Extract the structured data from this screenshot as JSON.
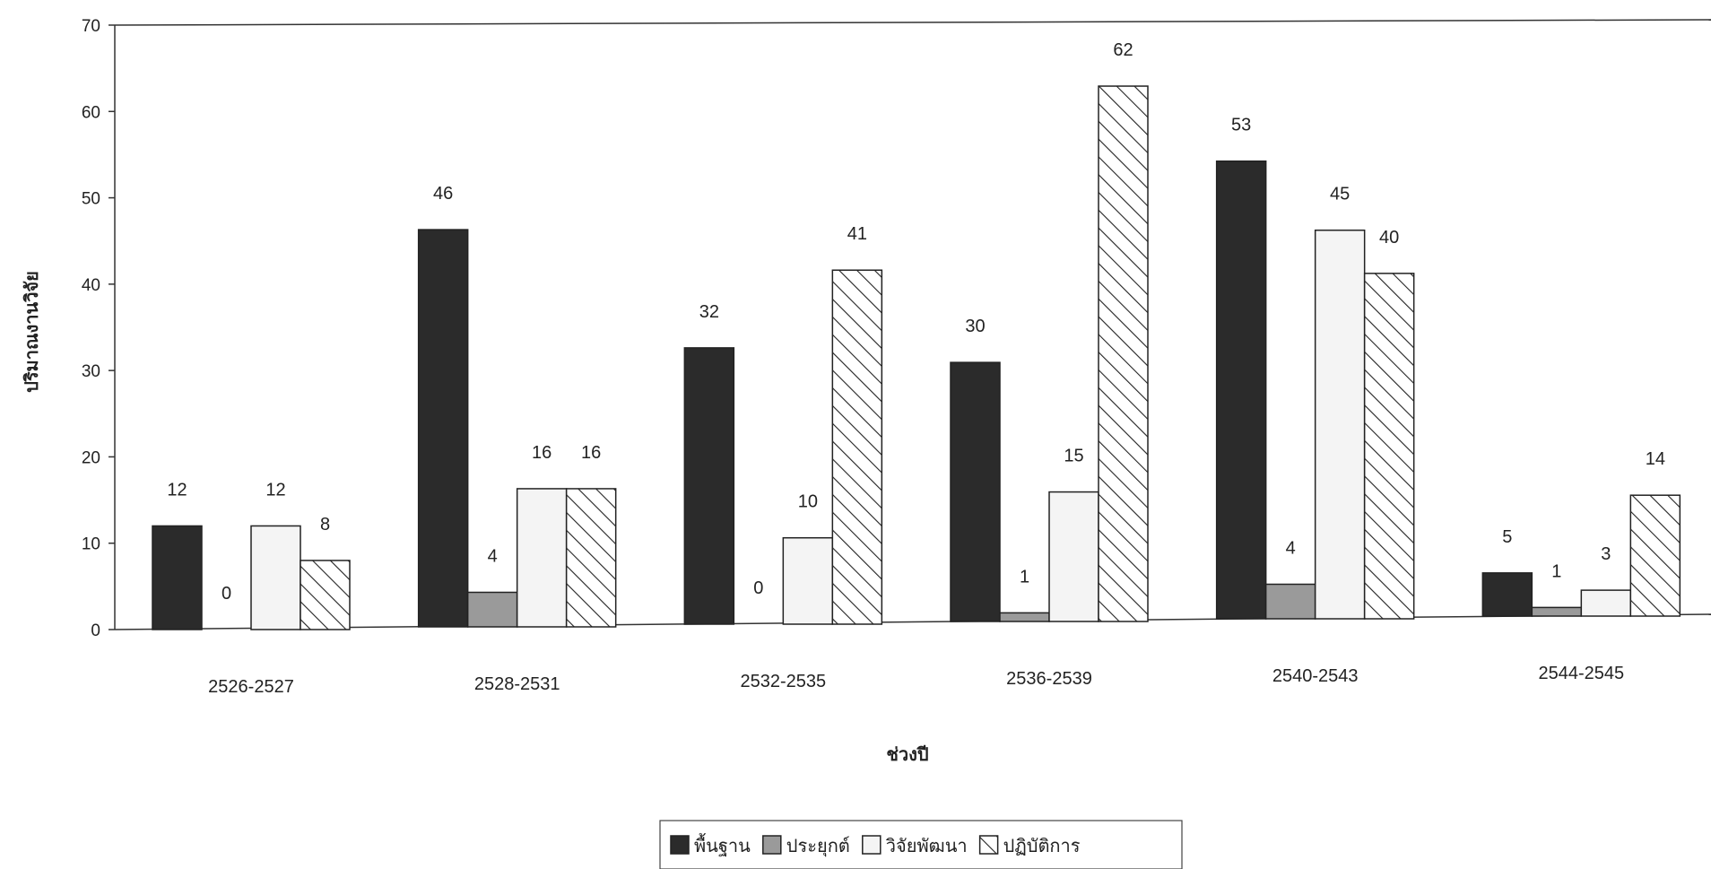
{
  "chart_data": {
    "type": "bar",
    "title": "",
    "xlabel": "ช่วงปี",
    "ylabel": "ปริมาณงานวิจัย",
    "ylim": [
      0,
      70
    ],
    "yticks": [
      0,
      10,
      20,
      30,
      40,
      50,
      60,
      70
    ],
    "grid": false,
    "legend_position": "bottom",
    "categories": [
      "2526-2527",
      "2528-2531",
      "2532-2535",
      "2536-2539",
      "2540-2543",
      "2544-2545"
    ],
    "series": [
      {
        "name": "พื้นฐาน",
        "pattern": "solid-dark",
        "color": "#2b2b2b",
        "values": [
          12,
          46,
          32,
          30,
          53,
          5
        ]
      },
      {
        "name": "ประยุกต์",
        "pattern": "solid-gray",
        "color": "#9a9a9a",
        "values": [
          0,
          4,
          0,
          1,
          4,
          1
        ]
      },
      {
        "name": "วิจัยพัฒนา",
        "pattern": "white",
        "color": "#f4f4f4",
        "values": [
          12,
          16,
          10,
          15,
          45,
          3
        ]
      },
      {
        "name": "ปฏิบัติการ",
        "pattern": "diagonal-hatch",
        "color": "#ffffff",
        "values": [
          8,
          16,
          41,
          62,
          40,
          14
        ]
      }
    ]
  }
}
